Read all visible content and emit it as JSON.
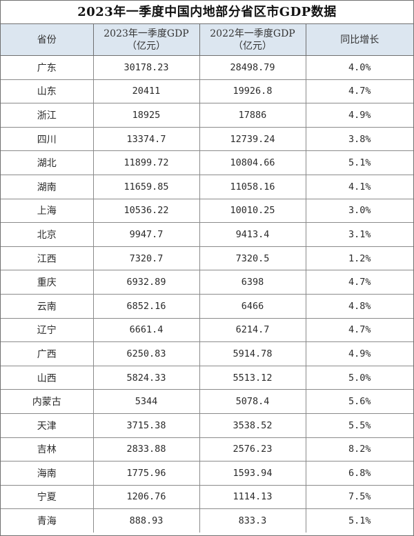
{
  "title": "2023年一季度中国内地部分省区市GDP数据",
  "headers": {
    "province": "省份",
    "gdp2023_line1": "2023年一季度GDP",
    "gdp2023_line2": "（亿元）",
    "gdp2022_line1": "2022年一季度GDP",
    "gdp2022_line2": "（亿元）",
    "growth": "同比增长"
  },
  "rows": [
    {
      "province": "广东",
      "gdp2023": "30178.23",
      "gdp2022": "28498.79",
      "growth": "4.0%"
    },
    {
      "province": "山东",
      "gdp2023": "20411",
      "gdp2022": "19926.8",
      "growth": "4.7%"
    },
    {
      "province": "浙江",
      "gdp2023": "18925",
      "gdp2022": "17886",
      "growth": "4.9%"
    },
    {
      "province": "四川",
      "gdp2023": "13374.7",
      "gdp2022": "12739.24",
      "growth": "3.8%"
    },
    {
      "province": "湖北",
      "gdp2023": "11899.72",
      "gdp2022": "10804.66",
      "growth": "5.1%"
    },
    {
      "province": "湖南",
      "gdp2023": "11659.85",
      "gdp2022": "11058.16",
      "growth": "4.1%"
    },
    {
      "province": "上海",
      "gdp2023": "10536.22",
      "gdp2022": "10010.25",
      "growth": "3.0%"
    },
    {
      "province": "北京",
      "gdp2023": "9947.7",
      "gdp2022": "9413.4",
      "growth": "3.1%"
    },
    {
      "province": "江西",
      "gdp2023": "7320.7",
      "gdp2022": "7320.5",
      "growth": "1.2%"
    },
    {
      "province": "重庆",
      "gdp2023": "6932.89",
      "gdp2022": "6398",
      "growth": "4.7%"
    },
    {
      "province": "云南",
      "gdp2023": "6852.16",
      "gdp2022": "6466",
      "growth": "4.8%"
    },
    {
      "province": "辽宁",
      "gdp2023": "6661.4",
      "gdp2022": "6214.7",
      "growth": "4.7%"
    },
    {
      "province": "广西",
      "gdp2023": "6250.83",
      "gdp2022": "5914.78",
      "growth": "4.9%"
    },
    {
      "province": "山西",
      "gdp2023": "5824.33",
      "gdp2022": "5513.12",
      "growth": "5.0%"
    },
    {
      "province": "内蒙古",
      "gdp2023": "5344",
      "gdp2022": "5078.4",
      "growth": "5.6%"
    },
    {
      "province": "天津",
      "gdp2023": "3715.38",
      "gdp2022": "3538.52",
      "growth": "5.5%"
    },
    {
      "province": "吉林",
      "gdp2023": "2833.88",
      "gdp2022": "2576.23",
      "growth": "8.2%"
    },
    {
      "province": "海南",
      "gdp2023": "1775.96",
      "gdp2022": "1593.94",
      "growth": "6.8%"
    },
    {
      "province": "宁夏",
      "gdp2023": "1206.76",
      "gdp2022": "1114.13",
      "growth": "7.5%"
    },
    {
      "province": "青海",
      "gdp2023": "888.93",
      "gdp2022": "833.3",
      "growth": "5.1%"
    }
  ]
}
